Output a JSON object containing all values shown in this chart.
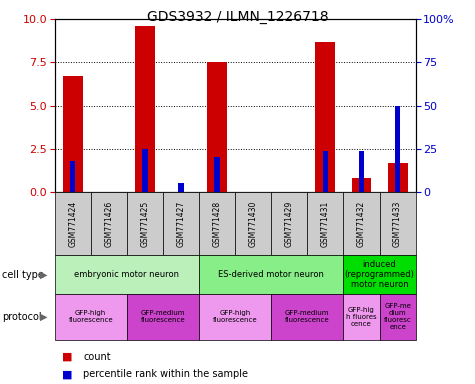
{
  "title": "GDS3932 / ILMN_1226718",
  "samples": [
    "GSM771424",
    "GSM771426",
    "GSM771425",
    "GSM771427",
    "GSM771428",
    "GSM771430",
    "GSM771429",
    "GSM771431",
    "GSM771432",
    "GSM771433"
  ],
  "count_values": [
    6.7,
    0.0,
    9.6,
    0.0,
    7.5,
    0.0,
    0.0,
    8.7,
    0.8,
    1.7
  ],
  "percentile_values": [
    18,
    0,
    25,
    5,
    20,
    0,
    0,
    24,
    24,
    50
  ],
  "ylim_left": [
    0,
    10
  ],
  "ylim_right": [
    0,
    100
  ],
  "yticks_left": [
    0,
    2.5,
    5,
    7.5,
    10
  ],
  "yticks_right": [
    0,
    25,
    50,
    75,
    100
  ],
  "count_color": "#cc0000",
  "percentile_color": "#0000cc",
  "cell_type_groups": [
    {
      "label": "embryonic motor neuron",
      "start": 0,
      "end": 3,
      "color": "#bbf0bb"
    },
    {
      "label": "ES-derived motor neuron",
      "start": 4,
      "end": 7,
      "color": "#88ee88"
    },
    {
      "label": "induced\n(reprogrammed)\nmotor neuron",
      "start": 8,
      "end": 9,
      "color": "#00dd00"
    }
  ],
  "protocol_groups": [
    {
      "label": "GFP-high\nfluorescence",
      "start": 0,
      "end": 1,
      "color": "#ee99ee"
    },
    {
      "label": "GFP-medium\nfluorescence",
      "start": 2,
      "end": 3,
      "color": "#cc44cc"
    },
    {
      "label": "GFP-high\nfluorescence",
      "start": 4,
      "end": 5,
      "color": "#ee99ee"
    },
    {
      "label": "GFP-medium\nfluorescence",
      "start": 6,
      "end": 7,
      "color": "#cc44cc"
    },
    {
      "label": "GFP-hig\nh fluores\ncence",
      "start": 8,
      "end": 8,
      "color": "#ee99ee"
    },
    {
      "label": "GFP-me\ndium\nfluoresc\nence",
      "start": 9,
      "end": 9,
      "color": "#cc44cc"
    }
  ],
  "cell_type_label": "cell type",
  "protocol_label": "protocol",
  "legend_count": "count",
  "legend_percentile": "percentile rank within the sample",
  "background_color": "#ffffff",
  "tick_bg_color": "#cccccc"
}
